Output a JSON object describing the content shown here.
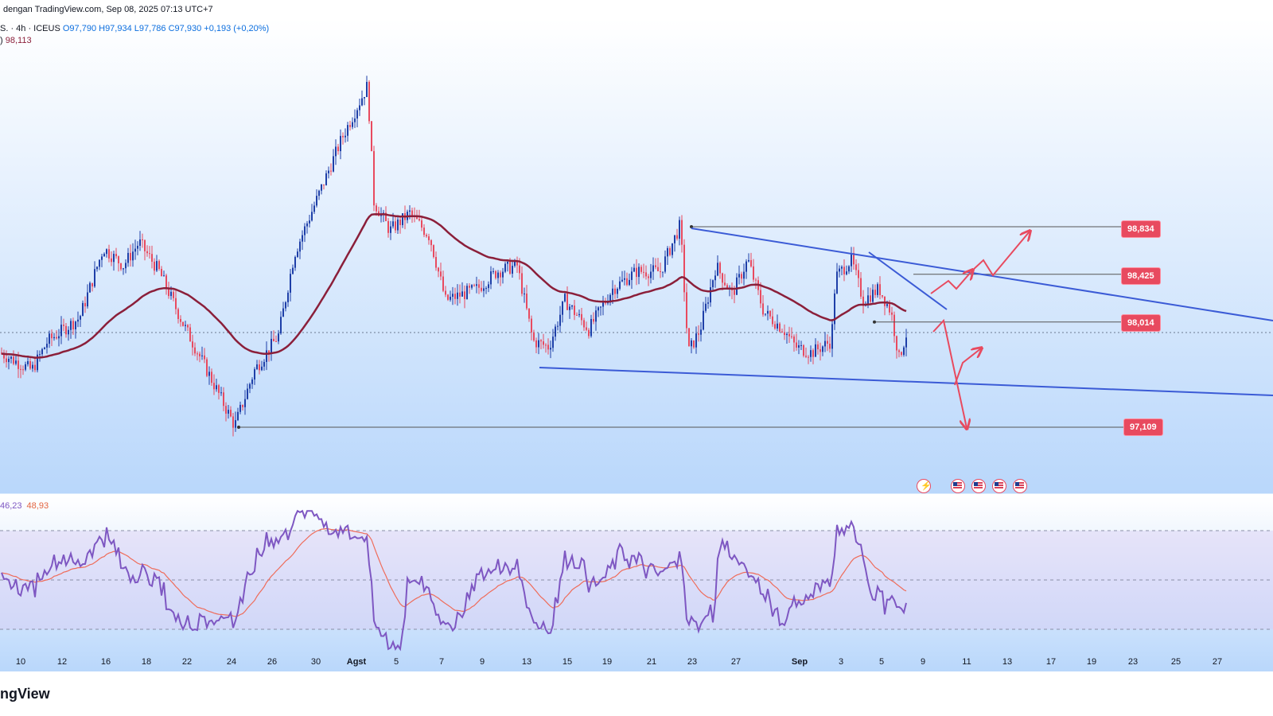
{
  "header": {
    "published": "dengan TradingView.com, Sep 08, 2025 07:13 UTC+7"
  },
  "legend": {
    "symbol": "S. · 4h · ICEUS",
    "open": "O97,790",
    "high": "H97,934",
    "low": "L97,786",
    "close": "C97,930",
    "change": "+0,193 (+0,20%)",
    "ema_prefix": ")",
    "ema_value": "98,113",
    "rsi_value": "46,23",
    "rsi_ma_value": "48,93"
  },
  "colors": {
    "bull": "#1e3fa8",
    "bear": "#e84a5f",
    "ema": "#8b1f3a",
    "trendline": "#3b5bd6",
    "level": "#555555",
    "rsi": "#7e57c2",
    "rsi_ma": "#ef6c5a",
    "arrow": "#e84a5f"
  },
  "price_tags": [
    "98,834",
    "98,425",
    "98,014",
    "97,109"
  ],
  "x_axis_labels": [
    "10",
    "12",
    "16",
    "18",
    "22",
    "24",
    "26",
    "30",
    "Agst",
    "5",
    "7",
    "9",
    "13",
    "15",
    "19",
    "21",
    "23",
    "27",
    "Sep",
    "3",
    "5",
    "9",
    "11",
    "13",
    "17",
    "19",
    "23",
    "25",
    "27"
  ],
  "logo_text": "ngView",
  "event_icons": [
    "lightning-icon",
    "us-flag-icon",
    "us-flag-icon",
    "us-flag-icon",
    "us-flag-icon"
  ],
  "chart_data": {
    "type": "candlestick",
    "timeframe": "4h",
    "ema_series_name": "EMA",
    "price_levels": [
      98.834,
      98.425,
      98.014,
      97.109
    ],
    "x_ticks": [
      "10",
      "12",
      "16",
      "18",
      "22",
      "24",
      "26",
      "30",
      "Agst",
      "5",
      "7",
      "9",
      "13",
      "15",
      "19",
      "21",
      "23",
      "27",
      "Sep",
      "3",
      "5",
      "9",
      "11",
      "13",
      "17",
      "19",
      "23",
      "25",
      "27"
    ],
    "approx_close_path": [
      [
        0,
        97.75
      ],
      [
        40,
        97.6
      ],
      [
        60,
        97.85
      ],
      [
        100,
        98.05
      ],
      [
        130,
        98.65
      ],
      [
        155,
        98.5
      ],
      [
        175,
        98.7
      ],
      [
        200,
        98.45
      ],
      [
        230,
        98.0
      ],
      [
        260,
        97.6
      ],
      [
        295,
        97.12
      ],
      [
        320,
        97.6
      ],
      [
        350,
        97.9
      ],
      [
        370,
        98.6
      ],
      [
        400,
        99.1
      ],
      [
        430,
        99.6
      ],
      [
        462,
        100.05
      ],
      [
        470,
        99.05
      ],
      [
        490,
        98.8
      ],
      [
        515,
        98.95
      ],
      [
        540,
        98.75
      ],
      [
        560,
        98.2
      ],
      [
        580,
        98.25
      ],
      [
        600,
        98.3
      ],
      [
        625,
        98.45
      ],
      [
        650,
        98.5
      ],
      [
        670,
        97.85
      ],
      [
        690,
        97.8
      ],
      [
        710,
        98.2
      ],
      [
        740,
        97.95
      ],
      [
        770,
        98.3
      ],
      [
        800,
        98.45
      ],
      [
        830,
        98.45
      ],
      [
        855,
        98.85
      ],
      [
        865,
        97.75
      ],
      [
        880,
        97.95
      ],
      [
        900,
        98.5
      ],
      [
        920,
        98.25
      ],
      [
        940,
        98.55
      ],
      [
        960,
        98.1
      ],
      [
        985,
        97.95
      ],
      [
        1000,
        97.8
      ],
      [
        1020,
        97.75
      ],
      [
        1045,
        97.85
      ],
      [
        1050,
        98.4
      ],
      [
        1070,
        98.55
      ],
      [
        1085,
        98.2
      ],
      [
        1105,
        98.3
      ],
      [
        1120,
        98.1
      ],
      [
        1130,
        97.7
      ],
      [
        1140,
        97.93
      ]
    ],
    "rsi": {
      "levels": [
        70,
        50,
        30
      ],
      "last_value": 46.23,
      "ma_last_value": 48.93
    }
  }
}
